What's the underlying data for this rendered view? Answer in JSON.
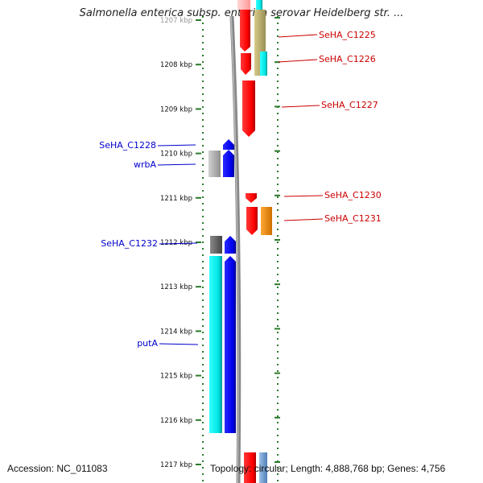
{
  "title": "Salmonella enterica subsp. enterica serovar Heidelberg str. ...",
  "accession": "Accession: NC_011083",
  "topology": "Topology: circular; Length: 4,888,768 bp; Genes: 4,756",
  "ruler_ticks": [
    {
      "kbp": 1207,
      "label": "1207 kbp"
    },
    {
      "kbp": 1208,
      "label": "1208 kbp"
    },
    {
      "kbp": 1209,
      "label": "1209 kbp"
    },
    {
      "kbp": 1210,
      "label": "1210 kbp"
    },
    {
      "kbp": 1211,
      "label": "1211 kbp"
    },
    {
      "kbp": 1212,
      "label": "1212 kbp"
    },
    {
      "kbp": 1213,
      "label": "1213 kbp"
    },
    {
      "kbp": 1214,
      "label": "1214 kbp"
    },
    {
      "kbp": 1215,
      "label": "1215 kbp"
    },
    {
      "kbp": 1216,
      "label": "1216 kbp"
    },
    {
      "kbp": 1217,
      "label": "1217 kbp"
    }
  ],
  "labels": [
    {
      "text": "SeHA_C1225",
      "color": "#cc0000"
    },
    {
      "text": "SeHA_C1226",
      "color": "#cc0000"
    },
    {
      "text": "SeHA_C1227",
      "color": "#cc0000"
    },
    {
      "text": "SeHA_C1230",
      "color": "#cc0000"
    },
    {
      "text": "SeHA_C1231",
      "color": "#cc0000"
    },
    {
      "text": "SeHA_C1228",
      "color": "#0000cc"
    },
    {
      "text": "wrbA",
      "color": "#0000cc"
    },
    {
      "text": "SeHA_C1232",
      "color": "#0000cc"
    },
    {
      "text": "putA",
      "color": "#0000cc"
    }
  ],
  "colors": {
    "forward_gene": "#ff0000",
    "reverse_gene": "#0000ee",
    "rna_cyan": "#00e5e5",
    "pseudo_khaki": "#b5a86a",
    "orange_gene": "#ff8c00",
    "grey_gene": "#b0b0b0",
    "dark_grey_gene": "#666666",
    "tick_green": "#2a7a2a",
    "backbone": "#888888"
  }
}
